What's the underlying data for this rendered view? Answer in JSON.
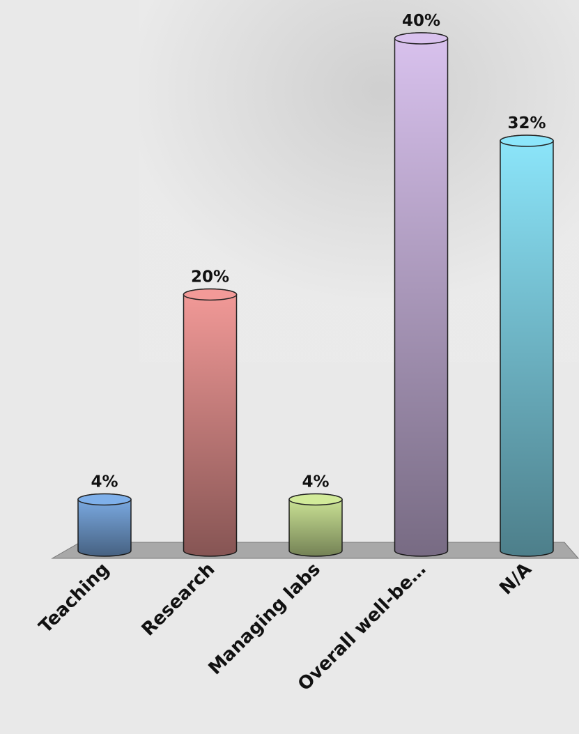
{
  "chart_data": {
    "type": "bar",
    "categories": [
      "Teaching",
      "Research",
      "Managing labs",
      "Overall well-be…",
      "N/A"
    ],
    "values": [
      4,
      20,
      4,
      40,
      32
    ],
    "value_labels": [
      "4%",
      "20%",
      "4%",
      "40%",
      "32%"
    ],
    "colors": [
      "#7fb0ea",
      "#f39a98",
      "#d2eb9a",
      "#d9c2ee",
      "#8ce6fb"
    ]
  }
}
